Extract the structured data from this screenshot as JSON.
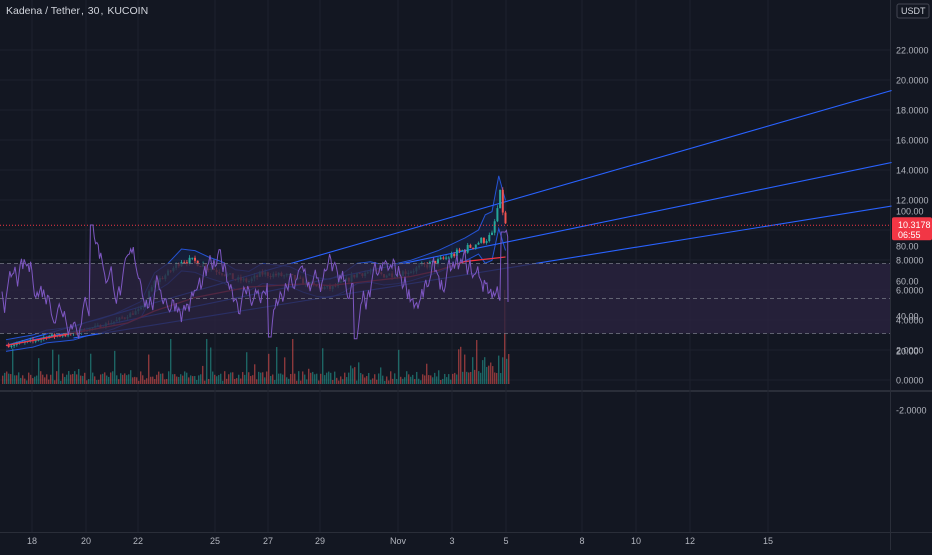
{
  "header": {
    "pair": "Kadena / Tether",
    "interval": "30",
    "exchange": "KUCOIN"
  },
  "currency_badge": "USDT",
  "price_tag": {
    "price": "10.3178",
    "countdown": "06:55"
  },
  "colors": {
    "background": "#131722",
    "grid": "#1e222d",
    "text": "#b2b5be",
    "trendline": "#2962ff",
    "ma": "#f23645",
    "up": "#26a69a",
    "down": "#ef5350",
    "rsi": "#7e57c2",
    "rsi_band": "#2a2340",
    "price_line": "#f23645",
    "price_tag": "#f23645"
  },
  "chart_data": [
    {
      "type": "candlestick",
      "title": "Kadena / Tether, 30, KUCOIN",
      "x_tick_labels": [
        "18",
        "20",
        "22",
        "25",
        "27",
        "29",
        "Nov",
        "3",
        "5",
        "8",
        "10",
        "12",
        "15"
      ],
      "y_tick_labels": [
        "22.0000",
        "20.0000",
        "18.0000",
        "16.0000",
        "14.0000",
        "12.0000",
        "8.0000",
        "6.0000",
        "4.0000",
        "2.0000",
        "0.0000",
        "-2.0000"
      ],
      "ylim": [
        -2,
        22
      ],
      "close_path": {
        "t": [
          0,
          1,
          1.5,
          2,
          2.5,
          3,
          3.5,
          4,
          4.5,
          5,
          5.5,
          6,
          6.5,
          7,
          7.5,
          8,
          8.5,
          9,
          9.5,
          10,
          10.5,
          11,
          11.5,
          12,
          12.5,
          13,
          13.5,
          14,
          14.5,
          15,
          15.5,
          16,
          16.5,
          17,
          17.5,
          18,
          18.3,
          18.5
        ],
        "close": [
          2.3,
          2.6,
          2.9,
          3.0,
          3.1,
          3.4,
          3.6,
          3.9,
          4.3,
          4.7,
          6.5,
          7.1,
          8.0,
          7.9,
          7.5,
          7.2,
          6.7,
          6.6,
          7.1,
          7.0,
          6.9,
          6.5,
          6.2,
          6.1,
          6.5,
          7.1,
          7.2,
          7.0,
          7.1,
          7.3,
          7.6,
          7.9,
          8.3,
          8.7,
          9.2,
          9.6,
          12.3,
          10.3
        ]
      },
      "moving_average": {
        "t": [
          0,
          4.5,
          5.5,
          7,
          9,
          11,
          12,
          13,
          15,
          16,
          17,
          18.5
        ],
        "value": [
          2.3,
          3.8,
          4.6,
          5.5,
          6.2,
          6.4,
          6.3,
          6.5,
          6.9,
          7.3,
          7.9,
          8.2
        ]
      },
      "trendlines": [
        {
          "start": [
            0,
            2.3
          ],
          "end": [
            18.3,
            12.0
          ],
          "extended_to": [
            32.8,
            19.3
          ]
        },
        {
          "start": [
            0,
            2.3
          ],
          "end": [
            18.5,
            9.7
          ],
          "extended_to": [
            32.8,
            14.5
          ]
        },
        {
          "start": [
            2.5,
            2.8
          ],
          "end": [
            18.5,
            8.1
          ],
          "extended_to": [
            32.8,
            11.6
          ]
        }
      ],
      "last_price": 10.3178,
      "volume_note": "volume histogram near bottom of price pane, peak at Nov 5"
    },
    {
      "type": "line",
      "name": "RSI",
      "y_tick_labels": [
        "100.00",
        "80.00",
        "60.00",
        "40.00",
        "20.00"
      ],
      "ylim": [
        20,
        100
      ],
      "bands": {
        "upper": 70,
        "middle": 50,
        "lower": 30
      },
      "range_observed": [
        27,
        93
      ],
      "last_value": 48
    }
  ]
}
